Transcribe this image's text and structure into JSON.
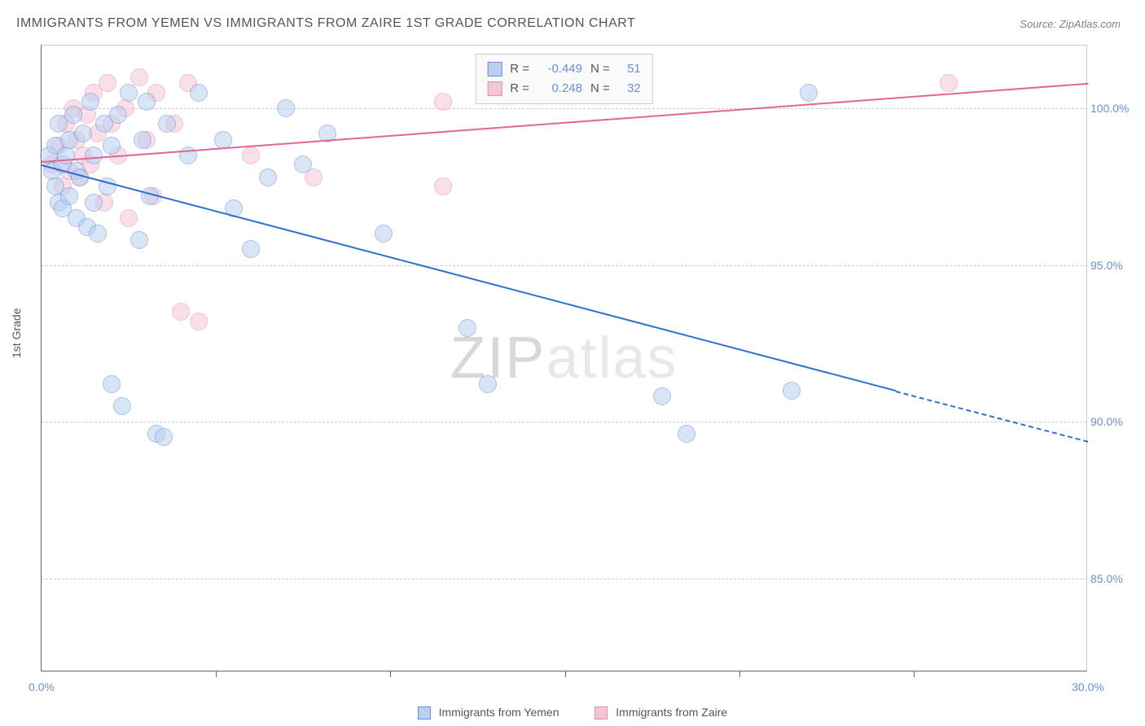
{
  "title": "IMMIGRANTS FROM YEMEN VS IMMIGRANTS FROM ZAIRE 1ST GRADE CORRELATION CHART",
  "source_label": "Source:",
  "source_name": "ZipAtlas.com",
  "ylabel": "1st Grade",
  "watermark_a": "ZIP",
  "watermark_b": "atlas",
  "chart": {
    "type": "scatter",
    "xlim": [
      0,
      30
    ],
    "ylim": [
      82,
      102
    ],
    "ytick_labels": [
      "85.0%",
      "90.0%",
      "95.0%",
      "100.0%"
    ],
    "ytick_vals": [
      85,
      90,
      95,
      100
    ],
    "xtick_labels": [
      "0.0%",
      "30.0%"
    ],
    "xtick_vals": [
      0,
      30
    ],
    "xtick_minor": [
      5,
      10,
      15,
      20,
      25
    ],
    "grid_color": "#cccccc",
    "background_color": "#ffffff"
  },
  "series": {
    "yemen": {
      "label": "Immigrants from Yemen",
      "fill": "#b9d0f0",
      "stroke": "#6a8fd4",
      "marker_radius": 11,
      "R": "-0.449",
      "N": "51",
      "trend": {
        "x1": 0,
        "y1": 98.2,
        "x2": 24.5,
        "y2": 91.0,
        "color": "#2f6fd0",
        "dash_to": 30,
        "dash_y": 89.4
      },
      "points": [
        [
          0.2,
          98.5
        ],
        [
          0.3,
          98.0
        ],
        [
          0.4,
          97.5
        ],
        [
          0.4,
          98.8
        ],
        [
          0.5,
          97.0
        ],
        [
          0.5,
          99.5
        ],
        [
          0.6,
          96.8
        ],
        [
          0.6,
          98.2
        ],
        [
          0.7,
          98.5
        ],
        [
          0.8,
          99.0
        ],
        [
          0.8,
          97.2
        ],
        [
          0.9,
          99.8
        ],
        [
          1.0,
          96.5
        ],
        [
          1.0,
          98.0
        ],
        [
          1.1,
          97.8
        ],
        [
          1.2,
          99.2
        ],
        [
          1.3,
          96.2
        ],
        [
          1.4,
          100.2
        ],
        [
          1.5,
          97.0
        ],
        [
          1.5,
          98.5
        ],
        [
          1.6,
          96.0
        ],
        [
          1.8,
          99.5
        ],
        [
          1.9,
          97.5
        ],
        [
          2.0,
          91.2
        ],
        [
          2.0,
          98.8
        ],
        [
          2.2,
          99.8
        ],
        [
          2.3,
          90.5
        ],
        [
          2.5,
          100.5
        ],
        [
          2.8,
          95.8
        ],
        [
          2.9,
          99.0
        ],
        [
          3.0,
          100.2
        ],
        [
          3.1,
          97.2
        ],
        [
          3.3,
          89.6
        ],
        [
          3.5,
          89.5
        ],
        [
          3.6,
          99.5
        ],
        [
          4.2,
          98.5
        ],
        [
          4.5,
          100.5
        ],
        [
          5.2,
          99.0
        ],
        [
          5.5,
          96.8
        ],
        [
          6.0,
          95.5
        ],
        [
          6.5,
          97.8
        ],
        [
          7.0,
          100.0
        ],
        [
          7.5,
          98.2
        ],
        [
          8.2,
          99.2
        ],
        [
          9.8,
          96.0
        ],
        [
          12.2,
          93.0
        ],
        [
          12.8,
          91.2
        ],
        [
          17.8,
          90.8
        ],
        [
          18.5,
          89.6
        ],
        [
          21.5,
          91.0
        ],
        [
          22.0,
          100.5
        ]
      ]
    },
    "zaire": {
      "label": "Immigrants from Zaire",
      "fill": "#f5c5d5",
      "stroke": "#e390ad",
      "marker_radius": 11,
      "R": "0.248",
      "N": "32",
      "trend": {
        "x1": 0,
        "y1": 98.3,
        "x2": 30,
        "y2": 100.8,
        "color": "#e06890"
      },
      "points": [
        [
          0.3,
          98.2
        ],
        [
          0.5,
          98.8
        ],
        [
          0.6,
          97.5
        ],
        [
          0.7,
          99.5
        ],
        [
          0.8,
          98.0
        ],
        [
          0.9,
          100.0
        ],
        [
          1.0,
          99.0
        ],
        [
          1.1,
          97.8
        ],
        [
          1.2,
          98.5
        ],
        [
          1.3,
          99.8
        ],
        [
          1.4,
          98.2
        ],
        [
          1.5,
          100.5
        ],
        [
          1.6,
          99.2
        ],
        [
          1.8,
          97.0
        ],
        [
          1.9,
          100.8
        ],
        [
          2.0,
          99.5
        ],
        [
          2.2,
          98.5
        ],
        [
          2.4,
          100.0
        ],
        [
          2.5,
          96.5
        ],
        [
          2.8,
          101.0
        ],
        [
          3.0,
          99.0
        ],
        [
          3.2,
          97.2
        ],
        [
          3.3,
          100.5
        ],
        [
          3.8,
          99.5
        ],
        [
          4.0,
          93.5
        ],
        [
          4.2,
          100.8
        ],
        [
          4.5,
          93.2
        ],
        [
          6.0,
          98.5
        ],
        [
          7.8,
          97.8
        ],
        [
          11.5,
          100.2
        ],
        [
          11.5,
          97.5
        ],
        [
          26.0,
          100.8
        ]
      ]
    }
  },
  "stats_labels": {
    "r": "R  =",
    "n": "N  ="
  }
}
